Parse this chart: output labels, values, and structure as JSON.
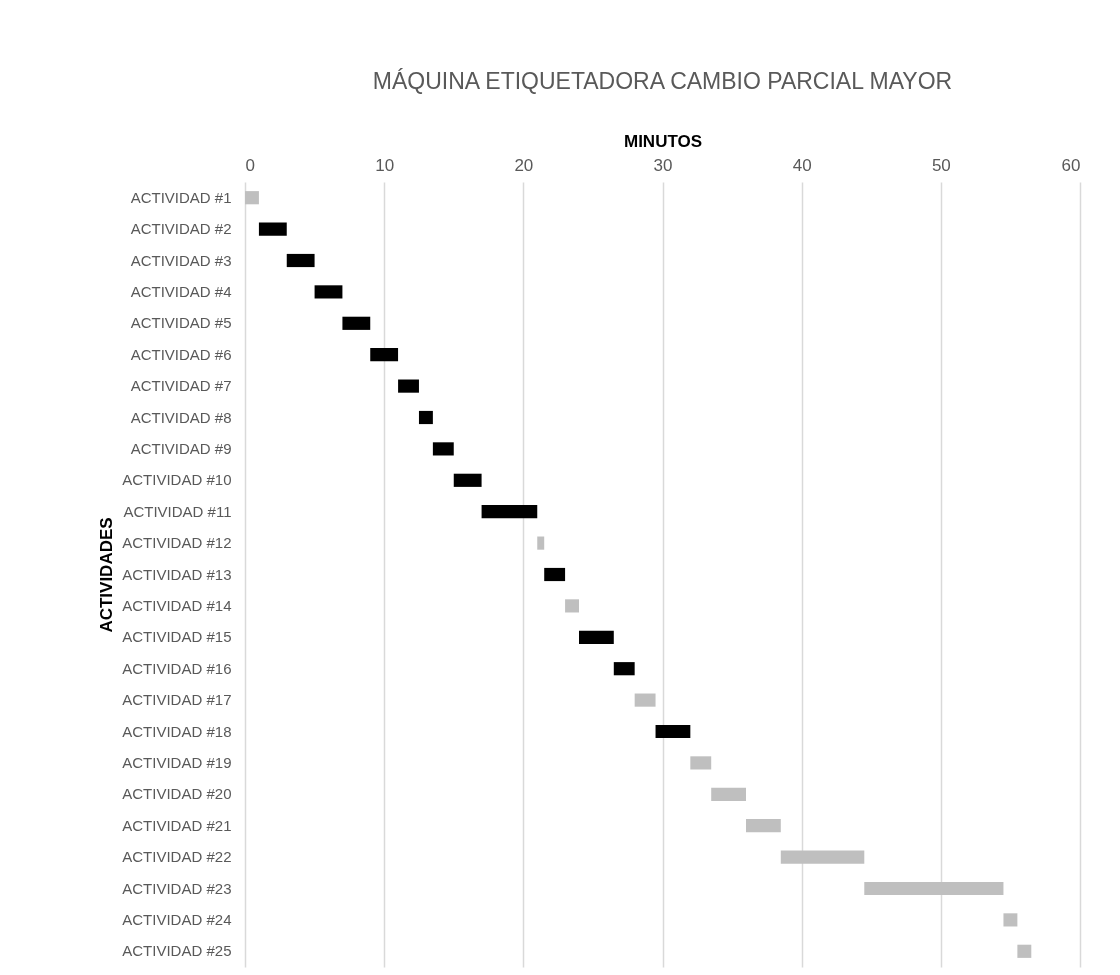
{
  "chart_data": {
    "type": "bar",
    "orientation": "horizontal",
    "title": "MÁQUINA ETIQUETADORA CAMBIO PARCIAL MAYOR",
    "xlabel": "MINUTOS",
    "ylabel": "ACTIVIDADES",
    "categories": [
      "ACTIVIDAD #1",
      "ACTIVIDAD #2",
      "ACTIVIDAD #3",
      "ACTIVIDAD #4",
      "ACTIVIDAD #5",
      "ACTIVIDAD #6",
      "ACTIVIDAD #7",
      "ACTIVIDAD #8",
      "ACTIVIDAD #9",
      "ACTIVIDAD #10",
      "ACTIVIDAD #11",
      "ACTIVIDAD #12",
      "ACTIVIDAD #13",
      "ACTIVIDAD #14",
      "ACTIVIDAD #15",
      "ACTIVIDAD #16",
      "ACTIVIDAD #17",
      "ACTIVIDAD #18",
      "ACTIVIDAD #19",
      "ACTIVIDAD #20",
      "ACTIVIDAD #21",
      "ACTIVIDAD #22",
      "ACTIVIDAD #23",
      "ACTIVIDAD #24",
      "ACTIVIDAD #25"
    ],
    "base": [
      0,
      1,
      3,
      5,
      7,
      9,
      11,
      12.5,
      13.5,
      15,
      17,
      21,
      21.5,
      23,
      24,
      26.5,
      28,
      29.5,
      32,
      33.5,
      36,
      38.5,
      44.5,
      54.5,
      55.5
    ],
    "values": [
      1,
      2,
      2,
      2,
      2,
      2,
      1.5,
      1,
      1.5,
      2,
      4,
      0.5,
      1.5,
      1,
      2.5,
      1.5,
      1.5,
      2.5,
      1.5,
      2.5,
      2.5,
      6,
      10,
      1,
      1
    ],
    "colors": [
      "#bfbfbf",
      "#000000",
      "#000000",
      "#000000",
      "#000000",
      "#000000",
      "#000000",
      "#000000",
      "#000000",
      "#000000",
      "#000000",
      "#bfbfbf",
      "#000000",
      "#bfbfbf",
      "#000000",
      "#000000",
      "#bfbfbf",
      "#000000",
      "#bfbfbf",
      "#bfbfbf",
      "#bfbfbf",
      "#bfbfbf",
      "#bfbfbf",
      "#bfbfbf",
      "#bfbfbf"
    ],
    "xlim": [
      0,
      60
    ],
    "xticks": [
      0,
      10,
      20,
      30,
      40,
      50,
      60
    ],
    "grid": "x"
  }
}
